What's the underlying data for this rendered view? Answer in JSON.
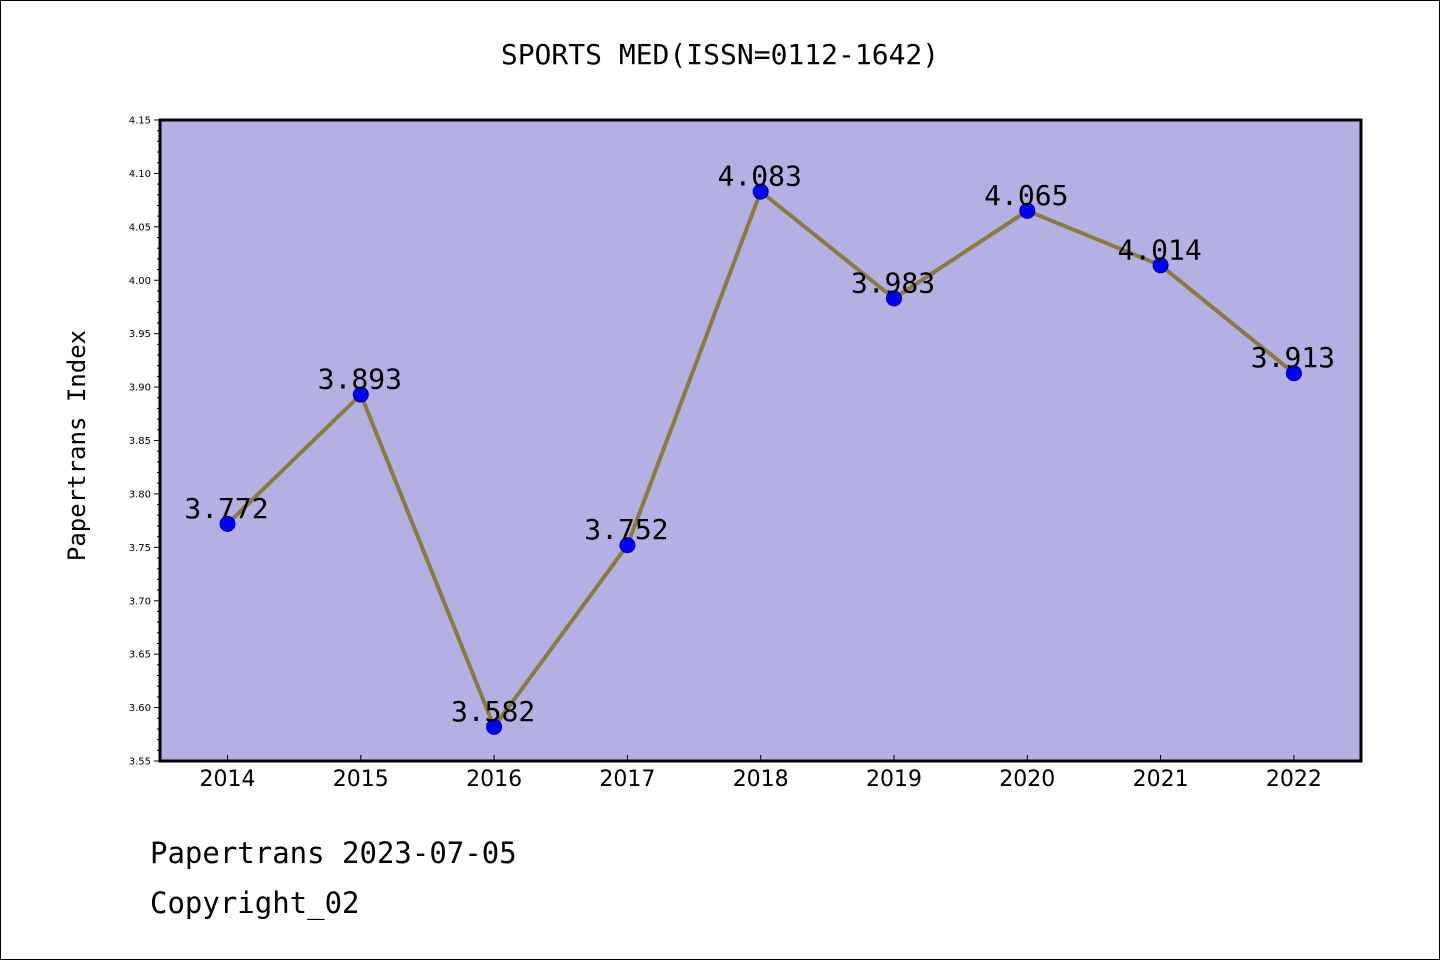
{
  "chart_data": {
    "type": "line",
    "title": "SPORTS MED(ISSN=0112-1642)",
    "xlabel": "",
    "ylabel": "Papertrans Index",
    "categories": [
      "2014",
      "2015",
      "2016",
      "2017",
      "2018",
      "2019",
      "2020",
      "2021",
      "2022"
    ],
    "values": [
      3.772,
      3.893,
      3.582,
      3.752,
      4.083,
      3.983,
      4.065,
      4.014,
      3.913
    ],
    "data_labels": [
      "3.772",
      "3.893",
      "3.582",
      "3.752",
      "4.083",
      "3.983",
      "4.065",
      "4.014",
      "3.913"
    ],
    "ylim": [
      3.55,
      4.15
    ],
    "yticks": [
      "3.55",
      "3.60",
      "3.65",
      "3.70",
      "3.75",
      "3.80",
      "3.85",
      "3.90",
      "3.95",
      "4.00",
      "4.05",
      "4.10",
      "4.15"
    ],
    "grid": false,
    "legend": "none",
    "colors": {
      "plot_background": "#b5b0e3",
      "line": "#8b7b3c",
      "marker_fill": "#0000ff",
      "marker_edge": "#00008b"
    }
  },
  "footer": {
    "line1": "Papertrans 2023-07-05",
    "line2": "Copyright_02"
  }
}
